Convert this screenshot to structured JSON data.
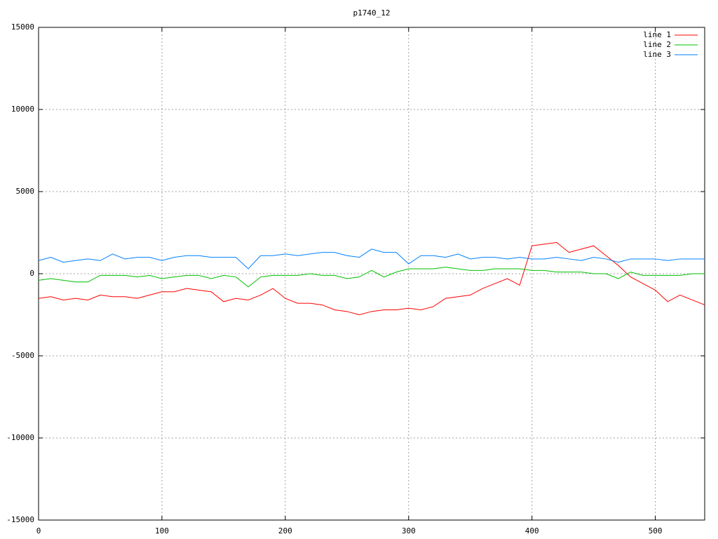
{
  "chart_data": {
    "type": "line",
    "title": "p1740_12",
    "x": [
      0,
      10,
      20,
      30,
      40,
      50,
      60,
      70,
      80,
      90,
      100,
      110,
      120,
      130,
      140,
      150,
      160,
      170,
      180,
      190,
      200,
      210,
      220,
      230,
      240,
      250,
      260,
      270,
      280,
      290,
      300,
      310,
      320,
      330,
      340,
      350,
      360,
      370,
      380,
      390,
      400,
      410,
      420,
      430,
      440,
      450,
      460,
      470,
      480,
      490,
      500,
      510,
      520,
      530,
      540
    ],
    "series": [
      {
        "name": "line 1",
        "color": "#ff0000",
        "values": [
          -1500,
          -1400,
          -1600,
          -1500,
          -1600,
          -1300,
          -1400,
          -1400,
          -1500,
          -1300,
          -1100,
          -1100,
          -900,
          -1000,
          -1100,
          -1700,
          -1500,
          -1600,
          -1300,
          -900,
          -1500,
          -1800,
          -1800,
          -1900,
          -2200,
          -2300,
          -2500,
          -2300,
          -2200,
          -2200,
          -2100,
          -2200,
          -2000,
          -1500,
          -1400,
          -1300,
          -900,
          -600,
          -300,
          -700,
          1700,
          1800,
          1900,
          1300,
          1500,
          1700,
          1100,
          500,
          -200,
          -600,
          -1000,
          -1700,
          -1300,
          -1600,
          -1900
        ]
      },
      {
        "name": "line 2",
        "color": "#00c000",
        "values": [
          -400,
          -300,
          -400,
          -500,
          -500,
          -100,
          -100,
          -100,
          -200,
          -100,
          -300,
          -200,
          -100,
          -100,
          -300,
          -100,
          -200,
          -800,
          -200,
          -100,
          -100,
          -100,
          0,
          -100,
          -100,
          -300,
          -200,
          200,
          -200,
          100,
          300,
          300,
          300,
          400,
          300,
          200,
          200,
          300,
          300,
          300,
          200,
          200,
          100,
          100,
          100,
          0,
          0,
          -300,
          100,
          -100,
          -100,
          -100,
          -100,
          0,
          0
        ]
      },
      {
        "name": "line 3",
        "color": "#0080ff",
        "values": [
          800,
          1000,
          700,
          800,
          900,
          800,
          1200,
          900,
          1000,
          1000,
          800,
          1000,
          1100,
          1100,
          1000,
          1000,
          1000,
          300,
          1100,
          1100,
          1200,
          1100,
          1200,
          1300,
          1300,
          1100,
          1000,
          1500,
          1300,
          1300,
          600,
          1100,
          1100,
          1000,
          1200,
          900,
          1000,
          1000,
          900,
          1000,
          900,
          900,
          1000,
          900,
          800,
          1000,
          900,
          700,
          900,
          900,
          900,
          800,
          900,
          900,
          900
        ]
      }
    ],
    "xlim": [
      0,
      540
    ],
    "xticks": [
      0,
      100,
      200,
      300,
      400,
      500
    ],
    "ylim": [
      -15000,
      15000
    ],
    "yticks": [
      -15000,
      -10000,
      -5000,
      0,
      5000,
      10000,
      15000
    ],
    "grid": true,
    "legend": "top-right"
  }
}
